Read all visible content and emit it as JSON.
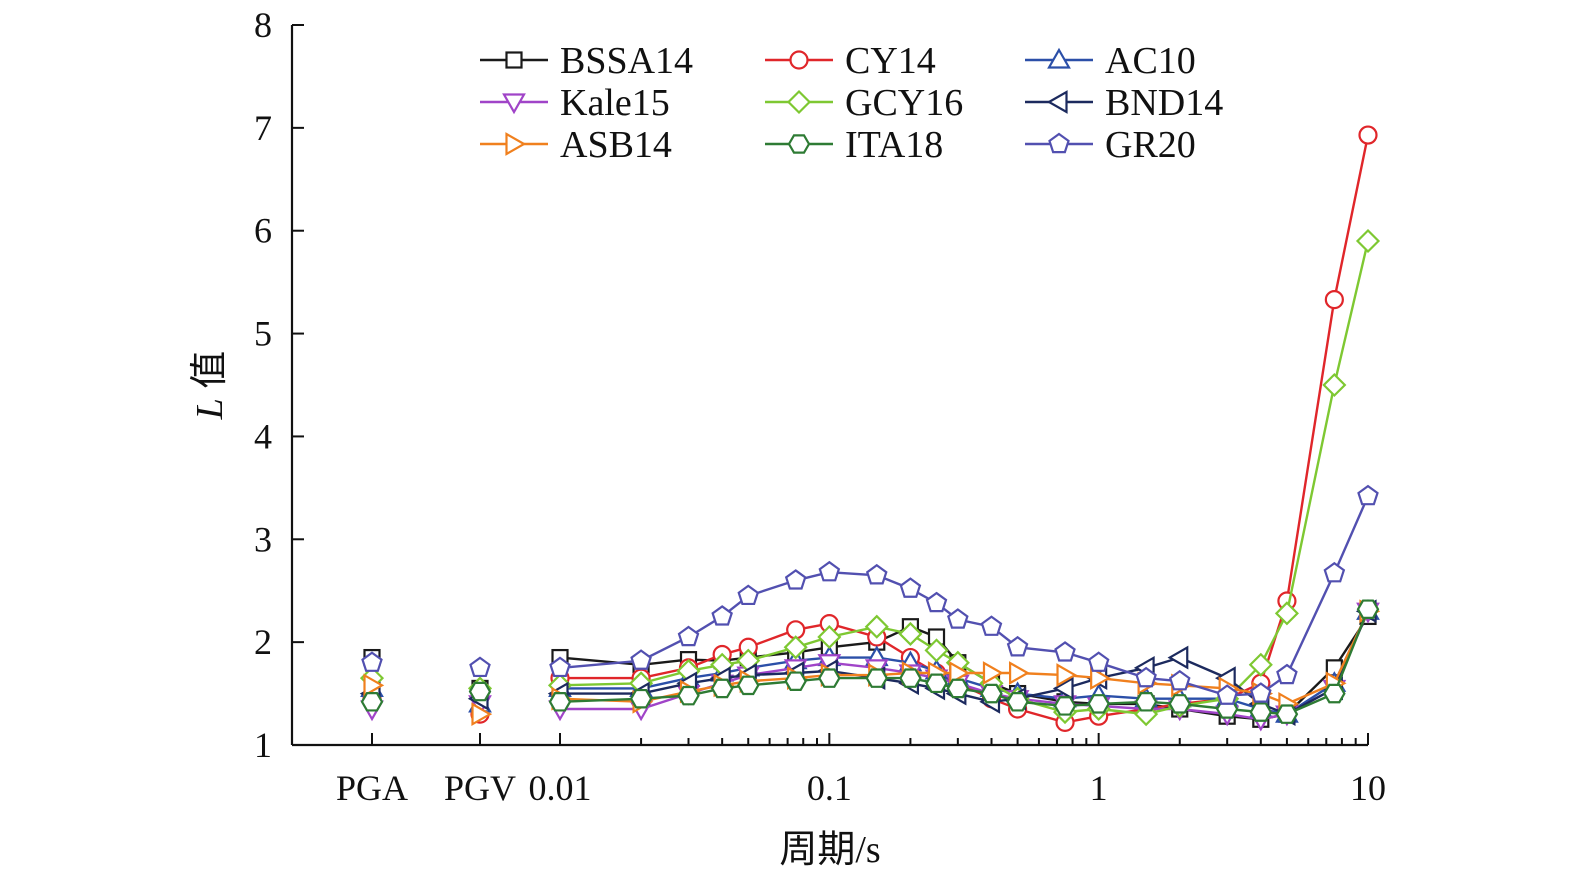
{
  "chart_data": {
    "type": "line",
    "xlabel": "周期/s",
    "ylabel_italic": "L",
    "ylabel_rest": " 值",
    "xscale": "log",
    "xlim": [
      0.01,
      10
    ],
    "ylim": [
      1,
      8
    ],
    "yticks": [
      "1",
      "2",
      "3",
      "4",
      "5",
      "6",
      "7",
      "8"
    ],
    "xticks": [
      {
        "value": 0.1,
        "label": "0.1"
      },
      {
        "value": 1,
        "label": "1"
      },
      {
        "value": 10,
        "label": "10"
      }
    ],
    "categorical_ticks": [
      "PGA",
      "PGV",
      "0.01"
    ],
    "legend_position": "top",
    "periods": [
      0.01,
      0.02,
      0.03,
      0.04,
      0.05,
      0.075,
      0.1,
      0.15,
      0.2,
      0.25,
      0.3,
      0.4,
      0.5,
      0.75,
      1,
      1.5,
      2,
      3,
      4,
      5,
      7.5,
      10
    ],
    "series": [
      {
        "name": "BSSA14",
        "marker": "square",
        "color": "#1a1a1a",
        "pga": 1.85,
        "pgv": 1.55,
        "values": [
          1.85,
          1.78,
          1.83,
          1.82,
          1.85,
          1.9,
          1.95,
          2.0,
          2.15,
          2.05,
          1.8,
          1.6,
          1.5,
          1.42,
          1.4,
          1.4,
          1.35,
          1.28,
          1.25,
          1.3,
          1.75,
          2.25
        ]
      },
      {
        "name": "CY14",
        "marker": "circle",
        "color": "#e0262a",
        "pga": 1.45,
        "pgv": 1.3,
        "values": [
          1.65,
          1.65,
          1.75,
          1.88,
          1.95,
          2.12,
          2.18,
          2.05,
          1.85,
          1.7,
          1.6,
          1.45,
          1.35,
          1.22,
          1.28,
          1.35,
          1.4,
          1.45,
          1.6,
          2.4,
          5.33,
          6.93
        ]
      },
      {
        "name": "AC10",
        "marker": "triangle-up",
        "color": "#2b4fa8",
        "pga": 1.55,
        "pgv": 1.4,
        "values": [
          1.55,
          1.55,
          1.65,
          1.7,
          1.75,
          1.82,
          1.85,
          1.85,
          1.8,
          1.72,
          1.65,
          1.55,
          1.5,
          1.45,
          1.48,
          1.45,
          1.45,
          1.45,
          1.35,
          1.3,
          1.6,
          2.3
        ]
      },
      {
        "name": "Kale15",
        "marker": "triangle-down",
        "color": "#a044c8",
        "pga": 1.35,
        "pgv": 1.4,
        "values": [
          1.35,
          1.35,
          1.5,
          1.6,
          1.68,
          1.75,
          1.8,
          1.75,
          1.7,
          1.65,
          1.6,
          1.5,
          1.45,
          1.4,
          1.38,
          1.35,
          1.35,
          1.3,
          1.25,
          1.3,
          1.55,
          2.3
        ]
      },
      {
        "name": "GCY16",
        "marker": "diamond",
        "color": "#7ec832",
        "pga": 1.65,
        "pgv": 1.55,
        "values": [
          1.58,
          1.6,
          1.72,
          1.78,
          1.82,
          1.95,
          2.05,
          2.15,
          2.08,
          1.92,
          1.8,
          1.6,
          1.45,
          1.32,
          1.35,
          1.3,
          1.38,
          1.45,
          1.78,
          2.28,
          4.5,
          5.9
        ]
      },
      {
        "name": "BND14",
        "marker": "triangle-left",
        "color": "#1c2a5e",
        "pga": 1.5,
        "pgv": 1.45,
        "values": [
          1.5,
          1.5,
          1.6,
          1.65,
          1.68,
          1.7,
          1.72,
          1.65,
          1.6,
          1.55,
          1.5,
          1.42,
          1.45,
          1.55,
          1.65,
          1.75,
          1.85,
          1.65,
          1.4,
          1.3,
          1.55,
          2.3
        ]
      },
      {
        "name": "ASB14",
        "marker": "triangle-right",
        "color": "#f0801e",
        "pga": 1.58,
        "pgv": 1.3,
        "values": [
          1.45,
          1.42,
          1.52,
          1.58,
          1.62,
          1.65,
          1.68,
          1.68,
          1.7,
          1.7,
          1.7,
          1.7,
          1.7,
          1.68,
          1.65,
          1.6,
          1.58,
          1.55,
          1.5,
          1.4,
          1.6,
          2.3
        ]
      },
      {
        "name": "ITA18",
        "marker": "hexagon",
        "color": "#2e7b34",
        "pga": 1.42,
        "pgv": 1.52,
        "values": [
          1.42,
          1.45,
          1.48,
          1.55,
          1.58,
          1.62,
          1.65,
          1.65,
          1.65,
          1.6,
          1.55,
          1.5,
          1.42,
          1.38,
          1.4,
          1.42,
          1.4,
          1.35,
          1.32,
          1.3,
          1.5,
          2.32
        ]
      },
      {
        "name": "GR20",
        "marker": "pentagon",
        "color": "#5250b0",
        "pga": 1.8,
        "pgv": 1.75,
        "values": [
          1.75,
          1.82,
          2.05,
          2.25,
          2.45,
          2.6,
          2.68,
          2.65,
          2.52,
          2.38,
          2.22,
          2.15,
          1.95,
          1.9,
          1.8,
          1.65,
          1.62,
          1.48,
          1.5,
          1.68,
          2.67,
          3.42
        ]
      }
    ]
  }
}
